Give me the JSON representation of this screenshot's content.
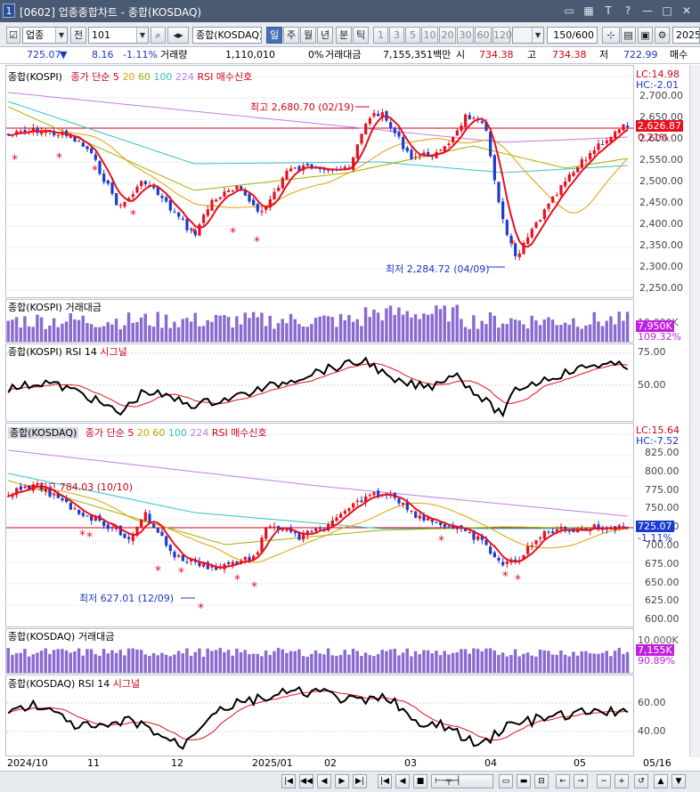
{
  "window": {
    "number": "1",
    "title": "[0602] 업종종합차트 - 종합(KOSDAQ)"
  },
  "toolbar": {
    "market": "업종",
    "jeon": "전",
    "code": "101",
    "index_name": "종합(KOSDAQ)",
    "periods": [
      "일",
      "주",
      "월",
      "년",
      "분",
      "틱"
    ],
    "active_period": "일",
    "intervals": [
      "1",
      "3",
      "5",
      "10",
      "20",
      "30",
      "60",
      "120"
    ],
    "count": "150/600",
    "year": "2025"
  },
  "info": {
    "price": "725.07",
    "arrow": "▼",
    "change": "8.16",
    "pct": "-1.11%",
    "vol_label": "거래량",
    "vol": "1,110,010",
    "zero": "0%",
    "amt_label": "거래대금",
    "amt": "7,155,351백만",
    "open_label": "시",
    "open": "734.38",
    "high_label": "고",
    "high": "734.38",
    "low_label": "저",
    "low": "722.99",
    "extra": "매수"
  },
  "kospi": {
    "title": "종합(KOSPI)",
    "legend": [
      "종가 단순 5",
      "20",
      "60",
      "100",
      "224"
    ],
    "rsi_sig": "RSI 매수신호",
    "lc": "LC:14.98",
    "hc": "HC:-2.01",
    "ticks": [
      "2,700.00",
      "2,650.00",
      "2,600.00",
      "2,550.00",
      "2,500.00",
      "2,450.00",
      "2,400.00",
      "2,350.00",
      "2,300.00",
      "2,250.00"
    ],
    "price_tag": "2,626.87",
    "pct_tag": "0.21%",
    "high_note": "최고 2,680.70 (02/19)",
    "low_note": "최저 2,284.72 (04/09)",
    "vol_title": "종합(KOSPI) 거래대금",
    "vol_tag": "7,950K",
    "vol_pct": "109.32%",
    "vol_under": "10,000K",
    "rsi_title": "종합(KOSPI) RSI 14",
    "rsi_sig_label": "시그널",
    "rsi_ticks": [
      "75.00",
      "50.00"
    ]
  },
  "kosdaq": {
    "title": "종합(KOSDAQ)",
    "legend": [
      "종가 단순 5",
      "20",
      "60",
      "100",
      "224"
    ],
    "rsi_sig": "RSI 매수신호",
    "lc": "LC:15.64",
    "hc": "HC:-7.52",
    "ticks": [
      "825.00",
      "800.00",
      "775.00",
      "750.00",
      "725.00",
      "700.00",
      "675.00",
      "650.00",
      "625.00",
      "600.00"
    ],
    "price_tag": "725.07",
    "pct_tag": "-1.11%",
    "high_note": "최고 784.03 (10/10)",
    "low_note": "최저 627.01 (12/09)",
    "vol_title": "종합(KOSDAQ) 거래대금",
    "vol_tag": "7,155K",
    "vol_pct": "90.89%",
    "vol_under": "10,000K",
    "rsi_title": "종합(KOSDAQ) RSI 14",
    "rsi_sig_label": "시그널",
    "rsi_ticks": [
      "60.00",
      "40.00"
    ]
  },
  "xaxis": [
    "2024/10",
    "11",
    "12",
    "2025/01",
    "02",
    "03",
    "04",
    "05",
    "05/16"
  ],
  "colors": {
    "up": "#e8101f",
    "down": "#1b3bd1",
    "ma5": "#e8101f",
    "ma20": "#e0a000",
    "ma60": "#a0b000",
    "ma100": "#38c0c8",
    "ma224": "#c080e0"
  }
}
